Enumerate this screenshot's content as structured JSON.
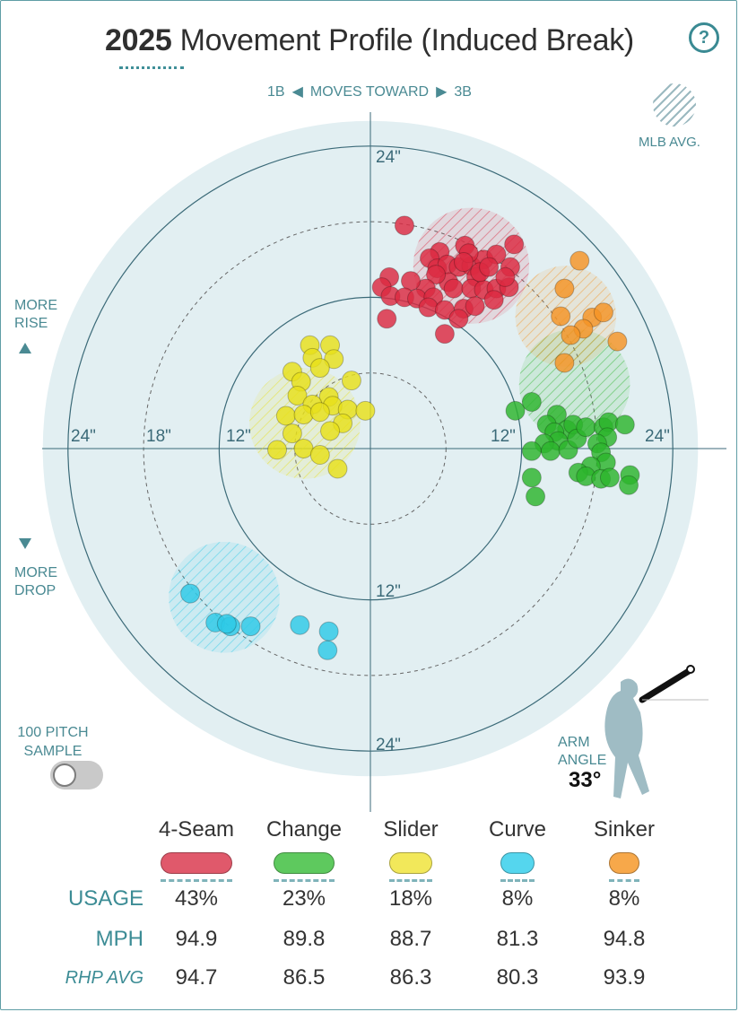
{
  "header": {
    "year": "2025",
    "title": "Movement Profile (Induced Break)",
    "help_label": "?"
  },
  "direction": {
    "left": "1B",
    "left_arrow": "◀",
    "middle": "MOVES TOWARD",
    "right_arrow": "▶",
    "right": "3B"
  },
  "legend": {
    "mlb_avg": "MLB AVG."
  },
  "side": {
    "more_rise_1": "MORE",
    "more_rise_2": "RISE",
    "more_drop_1": "MORE",
    "more_drop_2": "DROP"
  },
  "sample": {
    "line1": "100 PITCH",
    "line2": "SAMPLE",
    "toggle_on": false
  },
  "arm": {
    "line1": "ARM",
    "line2": "ANGLE",
    "value": "33°"
  },
  "table": {
    "row_labels": {
      "usage": "USAGE",
      "mph": "MPH",
      "rhp_avg": "RHP AVG"
    },
    "pitches": [
      {
        "name": "4-Seam",
        "color": "#e0596b",
        "usage": "43%",
        "mph": "94.9",
        "rhp_avg": "94.7"
      },
      {
        "name": "Change",
        "color": "#5ec95e",
        "usage": "23%",
        "mph": "89.8",
        "rhp_avg": "86.5"
      },
      {
        "name": "Slider",
        "color": "#f2e85a",
        "usage": "18%",
        "mph": "88.7",
        "rhp_avg": "86.3"
      },
      {
        "name": "Curve",
        "color": "#55d6ee",
        "usage": "8%",
        "mph": "81.3",
        "rhp_avg": "80.3"
      },
      {
        "name": "Sinker",
        "color": "#f7a84a",
        "usage": "8%",
        "mph": "94.8",
        "rhp_avg": "93.9"
      }
    ]
  },
  "chart_data": {
    "type": "scatter",
    "title": "2025 Movement Profile (Induced Break)",
    "xlabel": "1B ◀ MOVES TOWARD ▶ 3B",
    "ylabel": "MORE RISE / MORE DROP",
    "unit": "inches",
    "x_range": [
      -26,
      26
    ],
    "y_range": [
      -26,
      26
    ],
    "ring_labels": {
      "top": "24\"",
      "left_outer": "24\"",
      "left_mid": "18\"",
      "left_inner": "12\"",
      "right_inner": "12\"",
      "right_outer": "24\"",
      "bottom_inner": "12\"",
      "bottom_outer": "24\""
    },
    "rings_solid": [
      12,
      24
    ],
    "rings_dashed": [
      6,
      18
    ],
    "series": [
      {
        "name": "4-Seam",
        "color": "#dc2a41",
        "mlb_avg": {
          "x": 8,
          "y": 14.5,
          "r": 4.6
        },
        "points": [
          [
            2.7,
            17.7
          ],
          [
            5.5,
            15.6
          ],
          [
            7.5,
            16.1
          ],
          [
            4.7,
            15.1
          ],
          [
            5.3,
            14.3
          ],
          [
            6.1,
            14.6
          ],
          [
            7.0,
            14.4
          ],
          [
            8.0,
            14.5
          ],
          [
            9.0,
            15.0
          ],
          [
            10.0,
            15.4
          ],
          [
            11.4,
            16.2
          ],
          [
            11.1,
            14.4
          ],
          [
            7.8,
            15.5
          ],
          [
            8.4,
            13.6
          ],
          [
            6.2,
            13.2
          ],
          [
            5.2,
            13.8
          ],
          [
            4.4,
            12.7
          ],
          [
            3.2,
            13.3
          ],
          [
            1.5,
            13.6
          ],
          [
            0.9,
            12.8
          ],
          [
            1.6,
            12.1
          ],
          [
            2.7,
            12.0
          ],
          [
            3.7,
            11.9
          ],
          [
            5.0,
            12.0
          ],
          [
            6.6,
            12.7
          ],
          [
            8.0,
            12.7
          ],
          [
            9.0,
            12.6
          ],
          [
            10.0,
            12.7
          ],
          [
            11.0,
            12.8
          ],
          [
            4.6,
            11.2
          ],
          [
            5.9,
            11.0
          ],
          [
            7.4,
            11.1
          ],
          [
            8.3,
            11.3
          ],
          [
            9.8,
            11.8
          ],
          [
            1.3,
            10.3
          ],
          [
            7.0,
            10.3
          ],
          [
            5.9,
            9.1
          ],
          [
            7.4,
            14.8
          ],
          [
            8.7,
            14.0
          ],
          [
            9.4,
            14.4
          ],
          [
            10.7,
            13.6
          ]
        ]
      },
      {
        "name": "Change",
        "color": "#2cb42c",
        "mlb_avg": {
          "x": 16.2,
          "y": 5.1,
          "r": 4.4
        },
        "points": [
          [
            11.5,
            3.0
          ],
          [
            12.8,
            3.7
          ],
          [
            14.8,
            2.7
          ],
          [
            14.0,
            1.9
          ],
          [
            15.6,
            1.5
          ],
          [
            16.1,
            1.9
          ],
          [
            14.6,
            1.3
          ],
          [
            14.9,
            0.6
          ],
          [
            13.8,
            0.4
          ],
          [
            12.8,
            -0.2
          ],
          [
            14.3,
            -0.2
          ],
          [
            15.7,
            -0.1
          ],
          [
            16.4,
            0.8
          ],
          [
            17.1,
            1.7
          ],
          [
            18.5,
            1.7
          ],
          [
            18.9,
            2.1
          ],
          [
            20.2,
            1.9
          ],
          [
            18.8,
            0.9
          ],
          [
            18.0,
            0.4
          ],
          [
            18.3,
            -0.3
          ],
          [
            18.7,
            -1.1
          ],
          [
            17.5,
            -1.4
          ],
          [
            16.5,
            -1.9
          ],
          [
            17.1,
            -2.2
          ],
          [
            18.3,
            -2.4
          ],
          [
            19.0,
            -2.3
          ],
          [
            20.6,
            -2.1
          ],
          [
            20.5,
            -2.9
          ],
          [
            12.8,
            -2.3
          ],
          [
            13.1,
            -3.8
          ]
        ]
      },
      {
        "name": "Slider",
        "color": "#e8e01a",
        "mlb_avg": {
          "x": -5.2,
          "y": 2.0,
          "r": 4.4
        },
        "points": [
          [
            -4.8,
            8.2
          ],
          [
            -3.2,
            8.2
          ],
          [
            -4.6,
            7.2
          ],
          [
            -2.9,
            7.1
          ],
          [
            -4.0,
            6.4
          ],
          [
            -6.2,
            6.1
          ],
          [
            -5.5,
            5.3
          ],
          [
            -1.5,
            5.4
          ],
          [
            -5.8,
            4.2
          ],
          [
            -3.3,
            4.1
          ],
          [
            -4.6,
            3.5
          ],
          [
            -3.0,
            3.4
          ],
          [
            -1.8,
            3.1
          ],
          [
            -0.4,
            3.0
          ],
          [
            -6.7,
            2.6
          ],
          [
            -5.3,
            2.7
          ],
          [
            -4.0,
            2.9
          ],
          [
            -2.2,
            2.0
          ],
          [
            -6.2,
            1.2
          ],
          [
            -3.2,
            1.4
          ],
          [
            -7.4,
            -0.1
          ],
          [
            -5.3,
            0.0
          ],
          [
            -4.0,
            -0.5
          ],
          [
            -2.6,
            -1.6
          ]
        ]
      },
      {
        "name": "Curve",
        "color": "#2dc9e7",
        "mlb_avg": {
          "x": -11.6,
          "y": -11.8,
          "r": 4.4
        },
        "points": [
          [
            -14.3,
            -11.5
          ],
          [
            -12.3,
            -13.8
          ],
          [
            -11.1,
            -14.1
          ],
          [
            -11.4,
            -13.9
          ],
          [
            -9.5,
            -14.1
          ],
          [
            -5.6,
            -14.0
          ],
          [
            -3.3,
            -14.5
          ],
          [
            -3.4,
            -16.0
          ]
        ]
      },
      {
        "name": "Sinker",
        "color": "#f59425",
        "mlb_avg": {
          "x": 15.5,
          "y": 10.5,
          "r": 4.0
        },
        "points": [
          [
            16.6,
            14.9
          ],
          [
            15.4,
            12.7
          ],
          [
            15.1,
            10.5
          ],
          [
            17.6,
            10.4
          ],
          [
            18.5,
            10.8
          ],
          [
            16.9,
            9.5
          ],
          [
            15.9,
            9.0
          ],
          [
            19.6,
            8.5
          ],
          [
            15.4,
            6.8
          ]
        ]
      }
    ]
  }
}
